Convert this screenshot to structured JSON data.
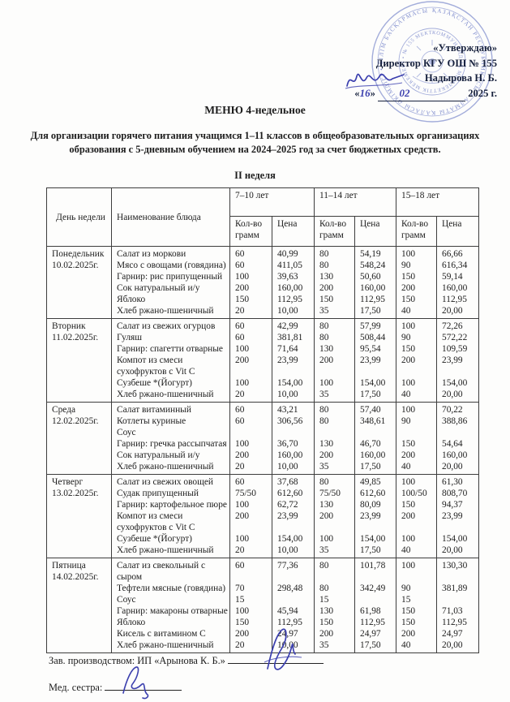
{
  "approval": {
    "line1": "«Утверждаю»",
    "line2": "Директор КГУ ОШ № 155",
    "name": "Надырова Н. Б.",
    "quote_open": "«",
    "quote_close": "»",
    "date_day": "16",
    "date_month": "02",
    "date_year": "2025 г."
  },
  "stamp": {
    "color": "#5b6cc0",
    "ring_text_outer": "ҚАЗАҚСТАН РЕСПУБЛИКАСЫ • АЛМАТЫ ҚАЛАСЫ ӘКІМДІГІ • БІЛІМ БАСҚАРМАСЫ •",
    "ring_text_inner": "КОММУНАЛДЫҚ МЕМЛЕКЕТТІК МЕКЕМЕСІ • № 155 МЕКТЕП •"
  },
  "title": "МЕНЮ 4-недельное",
  "subtitle": "Для организации горячего питания учащимся 1–11 классов в общеобразовательных организациях образования с 5-дневным обучением на 2024–2025 год за счет бюджетных средств.",
  "week_label": "II неделя",
  "table": {
    "col_day": "День недели",
    "col_dish": "Наименование блюда",
    "age_groups": [
      "7–10 лет",
      "11–14 лет",
      "15–18 лет"
    ],
    "sub_col_grams": "Кол-во грамм",
    "sub_col_price": "Цена",
    "days": [
      {
        "day": "Понедельник",
        "date": "10.02.2025г.",
        "lines": [
          [
            "Салат из моркови",
            "60",
            "40,99",
            "80",
            "54,19",
            "100",
            "66,66"
          ],
          [
            "Мясо с овощами (говядина)",
            "60",
            "411,05",
            "80",
            "548,24",
            "90",
            "616,34"
          ],
          [
            "Гарнир: рис припущенный",
            "100",
            "39,63",
            "130",
            "50,60",
            "150",
            "59,14"
          ],
          [
            "Сок натуральный и/у",
            "200",
            "160,00",
            "200",
            "160,00",
            "200",
            "160,00"
          ],
          [
            "Яблоко",
            "150",
            "112,95",
            "150",
            "112,95",
            "150",
            "112,95"
          ],
          [
            "Хлеб ржано-пшеничный",
            "20",
            "10,00",
            "35",
            "17,50",
            "40",
            "20,00"
          ]
        ]
      },
      {
        "day": "Вторник",
        "date": "11.02.2025г.",
        "lines": [
          [
            "Салат из свежих огурцов",
            "60",
            "42,99",
            "80",
            "57,99",
            "100",
            "72,26"
          ],
          [
            "Гуляш",
            "60",
            "381,81",
            "80",
            "508,44",
            "90",
            "572,22"
          ],
          [
            "Гарнир: спагетти отварные",
            "100",
            "71,64",
            "130",
            "95,54",
            "150",
            "109,59"
          ],
          [
            "Компот из смеси",
            "200",
            "23,99",
            "200",
            "23,99",
            "200",
            "23,99"
          ],
          [
            "сухофруктов с Vit C",
            "",
            "",
            "",
            "",
            "",
            ""
          ],
          [
            "Сузбеше *(Йогурт)",
            "100",
            "154,00",
            "100",
            "154,00",
            "100",
            "154,00"
          ],
          [
            "Хлеб ржано-пшеничный",
            "20",
            "10,00",
            "35",
            "17,50",
            "40",
            "20,00"
          ]
        ]
      },
      {
        "day": "Среда",
        "date": "12.02.2025г.",
        "lines": [
          [
            "Салат витаминный",
            "60",
            "43,21",
            "80",
            "57,40",
            "100",
            "70,22"
          ],
          [
            "Котлеты куриные",
            "60",
            "306,56",
            "80",
            "348,61",
            "90",
            "388,86"
          ],
          [
            "Соус",
            "",
            "",
            "",
            "",
            "",
            ""
          ],
          [
            "Гарнир: гречка рассыпчатая",
            "100",
            "36,70",
            "130",
            "46,70",
            "150",
            "54,64"
          ],
          [
            "Сок натуральный и/у",
            "200",
            "160,00",
            "200",
            "160,00",
            "200",
            "160,00"
          ],
          [
            "Хлеб ржано-пшеничный",
            "20",
            "10,00",
            "35",
            "17,50",
            "40",
            "20,00"
          ]
        ]
      },
      {
        "day": "Четверг",
        "date": "13.02.2025г.",
        "lines": [
          [
            "Салат из свежих овощей",
            "60",
            "37,68",
            "80",
            "49,85",
            "100",
            "61,30"
          ],
          [
            "Судак припущенный",
            "75/50",
            "612,60",
            "75/50",
            "612,60",
            "100/50",
            "808,70"
          ],
          [
            "Гарнир: картофельное пюре",
            "100",
            "62,72",
            "130",
            "80,09",
            "150",
            "94,37"
          ],
          [
            "Компот из смеси",
            "200",
            "23,99",
            "200",
            "23,99",
            "200",
            "23,99"
          ],
          [
            "сухофруктов с Vit C",
            "",
            "",
            "",
            "",
            "",
            ""
          ],
          [
            "Сузбеше *(Йогурт)",
            "100",
            "154,00",
            "100",
            "154,00",
            "100",
            "154,00"
          ],
          [
            "Хлеб ржано-пшеничный",
            "20",
            "10,00",
            "35",
            "17,50",
            "40",
            "20,00"
          ]
        ]
      },
      {
        "day": "Пятница",
        "date": "14.02.2025г.",
        "lines": [
          [
            "Салат из свекольный с",
            "60",
            "77,36",
            "80",
            "101,78",
            "100",
            "130,30"
          ],
          [
            "сыром",
            "",
            "",
            "",
            "",
            "",
            ""
          ],
          [
            "Тефтели мясные (говядина)",
            "70",
            "298,48",
            "80",
            "342,49",
            "90",
            "381,89"
          ],
          [
            "Соус",
            "15",
            "",
            "15",
            "",
            "15",
            ""
          ],
          [
            "Гарнир: макароны отварные",
            "100",
            "45,94",
            "130",
            "61,98",
            "150",
            "71,03"
          ],
          [
            "Яблоко",
            "150",
            "112,95",
            "150",
            "112,95",
            "150",
            "112,95"
          ],
          [
            "Кисель с витамином С",
            "200",
            "24,97",
            "200",
            "24,97",
            "200",
            "24,97"
          ],
          [
            "Хлеб ржано-пшеничный",
            "20",
            "10,00",
            "35",
            "17,50",
            "40",
            "20,00"
          ]
        ]
      }
    ]
  },
  "footer": {
    "line1": "Зав. производством: ИП «Арынова К. Б.»",
    "line2": "Мед. сестра:"
  }
}
